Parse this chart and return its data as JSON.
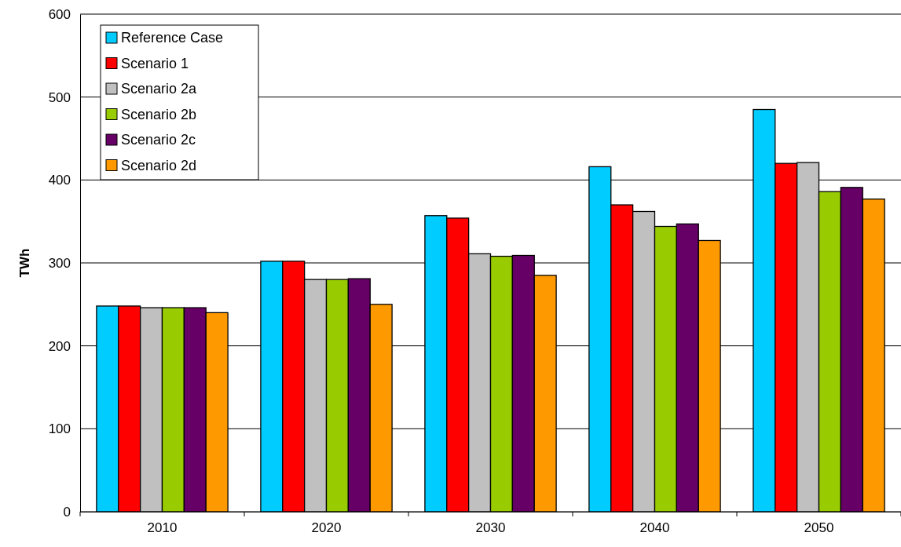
{
  "chart_data": {
    "type": "bar",
    "ylabel": "TWh",
    "categories": [
      "2010",
      "2020",
      "2030",
      "2040",
      "2050"
    ],
    "series": [
      {
        "name": "Reference Case",
        "color": "#00ccff",
        "values": [
          248,
          302,
          357,
          416,
          485
        ]
      },
      {
        "name": "Scenario 1",
        "color": "#ff0000",
        "values": [
          248,
          302,
          354,
          370,
          420
        ]
      },
      {
        "name": "Scenario 2a",
        "color": "#c0c0c0",
        "values": [
          246,
          280,
          311,
          362,
          421
        ]
      },
      {
        "name": "Scenario 2b",
        "color": "#99cc00",
        "values": [
          246,
          280,
          308,
          344,
          386
        ]
      },
      {
        "name": "Scenario 2c",
        "color": "#660066",
        "values": [
          246,
          281,
          309,
          347,
          391
        ]
      },
      {
        "name": "Scenario 2d",
        "color": "#ff9900",
        "values": [
          240,
          250,
          285,
          327,
          377
        ]
      }
    ],
    "ylim": [
      0,
      600
    ],
    "yticks": [
      0,
      100,
      200,
      300,
      400,
      500,
      600
    ],
    "grid": "y",
    "legend": "top left"
  }
}
